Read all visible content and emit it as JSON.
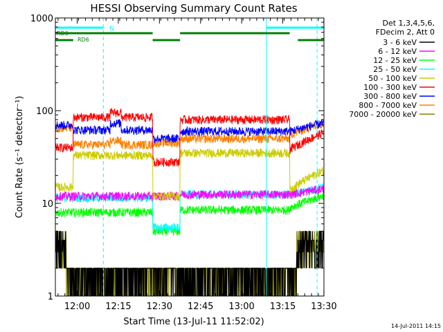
{
  "chart_data": {
    "type": "line",
    "title": "HESSI Observing Summary Count Rates",
    "xlabel": "Start Time (13-Jul-11 11:52:02)",
    "ylabel": "Count Rate (s⁻¹ detector⁻¹)",
    "yscale": "log",
    "ylim": [
      1,
      1000
    ],
    "xlim_minutes_after_start": [
      0,
      98
    ],
    "x_ticks": [
      {
        "label": "12:00",
        "minute": 7.97
      },
      {
        "label": "12:15",
        "minute": 22.97
      },
      {
        "label": "12:30",
        "minute": 37.97
      },
      {
        "label": "12:45",
        "minute": 52.97
      },
      {
        "label": "13:00",
        "minute": 67.97
      },
      {
        "label": "13:15",
        "minute": 82.97
      },
      {
        "label": "13:30",
        "minute": 97.97
      }
    ],
    "y_ticks": [
      {
        "label": "1",
        "value": 1
      },
      {
        "label": "10",
        "value": 10
      },
      {
        "label": "100",
        "value": 100
      },
      {
        "label": "1000",
        "value": 1000
      }
    ],
    "legend_header": [
      "Det 1,3,4,5,6,",
      "FDecim 2, Att 0"
    ],
    "legend_position": "right",
    "series": [
      {
        "name": "3 - 6 keV",
        "color": "#000000",
        "base": 1.8,
        "low_rate": true
      },
      {
        "name": "6 - 12 keV",
        "color": "#ff00ff",
        "base": 11.5
      },
      {
        "name": "12 - 25 keV",
        "color": "#00ff00",
        "base": 8.0
      },
      {
        "name": "25 - 50 keV",
        "color": "#00ffff",
        "base": 12.0
      },
      {
        "name": "50 - 100 keV",
        "color": "#cccc00",
        "base": 33.0
      },
      {
        "name": "100 - 300 keV",
        "color": "#ff0000",
        "base": 75.0
      },
      {
        "name": "300 - 800 keV",
        "color": "#0000ff",
        "base": 60.0
      },
      {
        "name": "800 - 7000 keV",
        "color": "#ff8000",
        "base": 45.0
      },
      {
        "name": "7000 - 20000 keV",
        "color": "#808000",
        "base": 2.0,
        "low_rate": true
      }
    ],
    "flags": [
      {
        "label": "N",
        "color": "#00ffff",
        "segments": [
          [
            0,
            17.5
          ],
          [
            77,
            98
          ]
        ]
      },
      {
        "label": "RD0",
        "color": "#007f00",
        "segments": [
          [
            0,
            35.5
          ],
          [
            45.5,
            85.5
          ]
        ]
      },
      {
        "label": "RD6",
        "color": "#007f00",
        "segments": [
          [
            0,
            6.5
          ],
          [
            35.5,
            45.5
          ],
          [
            88.5,
            98
          ]
        ]
      }
    ],
    "markers": [
      {
        "minute": 0,
        "style": "solid",
        "color": "#00ffff"
      },
      {
        "minute": 17.5,
        "style": "dashed",
        "color": "#00ffff"
      },
      {
        "minute": 77,
        "style": "solid",
        "color": "#00ffff"
      },
      {
        "minute": 95.5,
        "style": "dashed",
        "color": "#00ffff"
      }
    ],
    "grid": false
  },
  "footer_date": "14-Jul-2011 14:15"
}
